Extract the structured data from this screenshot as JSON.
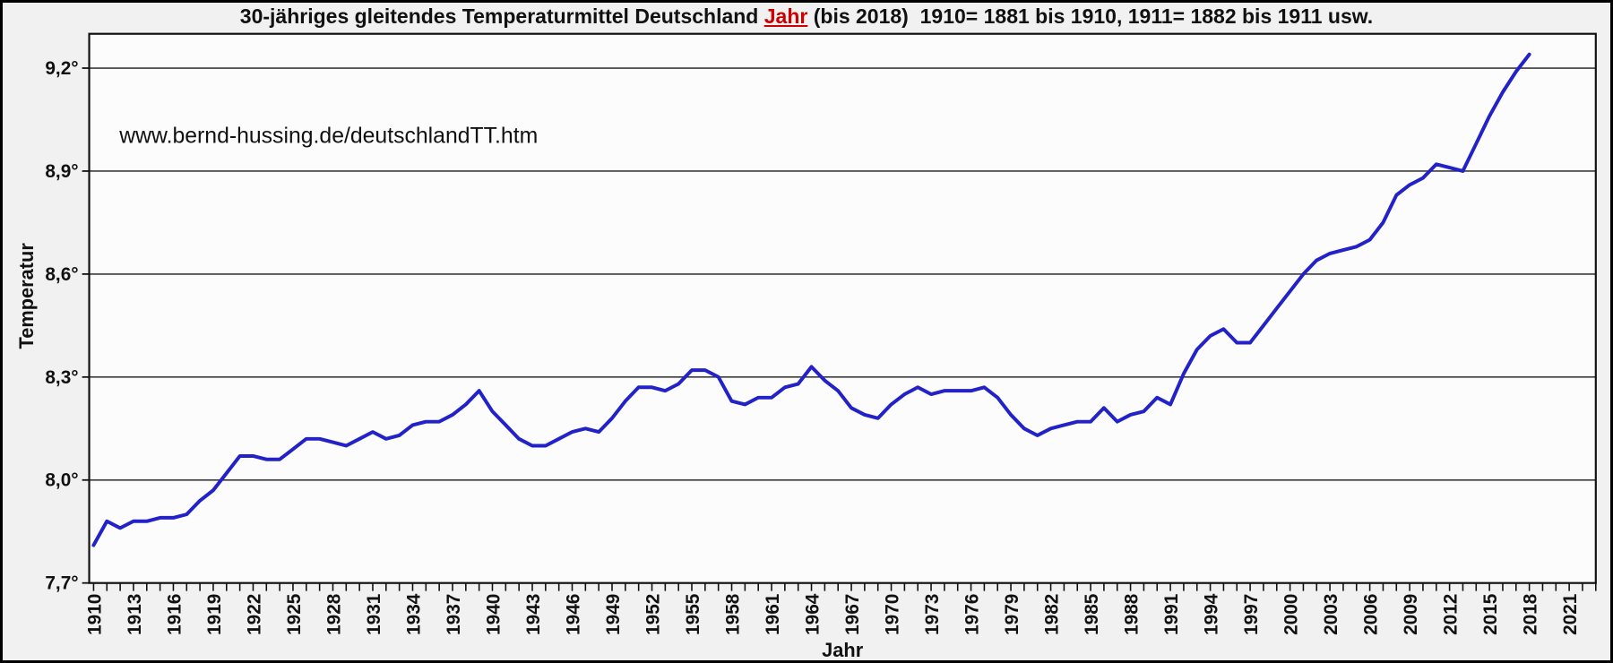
{
  "title": {
    "part1": "30-jähriges gleitendes Temperaturmittel Deutschland ",
    "highlight": "Jahr",
    "part2": " (bis 2018)  1910= 1881 bis 1910, 1911= 1882 bis 1911 usw."
  },
  "annotation": "www.bernd-hussing.de/deutschlandTT.htm",
  "colors": {
    "line": "#2222c8",
    "title_highlight": "#cc0000",
    "grid": "#3c3c3c",
    "axis": "#111111",
    "text": "#111111",
    "plot_bg": "#fcfcfc",
    "page_bg": "#f1f1f1"
  },
  "chart_data": {
    "type": "line",
    "title": "30-jähriges gleitendes Temperaturmittel Deutschland Jahr (bis 2018)  1910= 1881 bis 1910, 1911= 1882 bis 1911 usw.",
    "xlabel": "Jahr",
    "ylabel": "Temperatur",
    "legend": "none",
    "grid": "horizontal",
    "ylim": [
      7.7,
      9.3
    ],
    "y_tick_values": [
      7.7,
      8.0,
      8.3,
      8.6,
      8.9,
      9.2
    ],
    "y_tick_labels": [
      "7,7°",
      "8,0°",
      "8,3°",
      "8,6°",
      "8,9°",
      "9,2°"
    ],
    "x_axis_range": [
      1909.67,
      2023.0
    ],
    "x_tick_range": [
      1910,
      2023
    ],
    "x_tick_step": 1,
    "x_label_range": [
      1910,
      2021
    ],
    "x_label_step": 3,
    "series": [
      {
        "name": "30-jähriges gleitendes Temperaturmittel Deutschland",
        "color": "#2222c8",
        "years": [
          1910,
          1911,
          1912,
          1913,
          1914,
          1915,
          1916,
          1917,
          1918,
          1919,
          1920,
          1921,
          1922,
          1923,
          1924,
          1925,
          1926,
          1927,
          1928,
          1929,
          1930,
          1931,
          1932,
          1933,
          1934,
          1935,
          1936,
          1937,
          1938,
          1939,
          1940,
          1941,
          1942,
          1943,
          1944,
          1945,
          1946,
          1947,
          1948,
          1949,
          1950,
          1951,
          1952,
          1953,
          1954,
          1955,
          1956,
          1957,
          1958,
          1959,
          1960,
          1961,
          1962,
          1963,
          1964,
          1965,
          1966,
          1967,
          1968,
          1969,
          1970,
          1971,
          1972,
          1973,
          1974,
          1975,
          1976,
          1977,
          1978,
          1979,
          1980,
          1981,
          1982,
          1983,
          1984,
          1985,
          1986,
          1987,
          1988,
          1989,
          1990,
          1991,
          1992,
          1993,
          1994,
          1995,
          1996,
          1997,
          1998,
          1999,
          2000,
          2001,
          2002,
          2003,
          2004,
          2005,
          2006,
          2007,
          2008,
          2009,
          2010,
          2011,
          2012,
          2013,
          2014,
          2015,
          2016,
          2017,
          2018
        ],
        "values": [
          7.81,
          7.88,
          7.86,
          7.88,
          7.88,
          7.89,
          7.89,
          7.9,
          7.94,
          7.97,
          8.02,
          8.07,
          8.07,
          8.06,
          8.06,
          8.09,
          8.12,
          8.12,
          8.11,
          8.1,
          8.12,
          8.14,
          8.12,
          8.13,
          8.16,
          8.17,
          8.17,
          8.19,
          8.22,
          8.26,
          8.2,
          8.16,
          8.12,
          8.1,
          8.1,
          8.12,
          8.14,
          8.15,
          8.14,
          8.18,
          8.23,
          8.27,
          8.27,
          8.26,
          8.28,
          8.32,
          8.32,
          8.3,
          8.23,
          8.22,
          8.24,
          8.24,
          8.27,
          8.28,
          8.33,
          8.29,
          8.26,
          8.21,
          8.19,
          8.18,
          8.22,
          8.25,
          8.27,
          8.25,
          8.26,
          8.26,
          8.26,
          8.27,
          8.24,
          8.19,
          8.15,
          8.13,
          8.15,
          8.16,
          8.17,
          8.17,
          8.21,
          8.17,
          8.19,
          8.2,
          8.24,
          8.22,
          8.31,
          8.38,
          8.42,
          8.44,
          8.4,
          8.4,
          8.45,
          8.5,
          8.55,
          8.6,
          8.64,
          8.66,
          8.67,
          8.68,
          8.7,
          8.75,
          8.83,
          8.86,
          8.88,
          8.92,
          8.91,
          8.9,
          8.98,
          9.06,
          9.13,
          9.19,
          9.24
        ]
      }
    ],
    "annotations": [
      {
        "text": "www.bernd-hussing.de/deutschlandTT.htm",
        "x": 127,
        "y": 158
      }
    ]
  }
}
